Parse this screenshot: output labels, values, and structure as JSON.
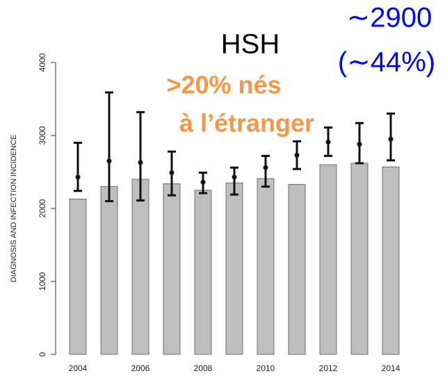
{
  "chart_data": {
    "type": "bar_errorbar",
    "ylabel": "DIAGNOSIS AND INFECTION INCIDENCE",
    "annotations": [
      "HSH",
      ">20% nés",
      "à l’étranger",
      "∼2900",
      "(∼44%)"
    ],
    "x": [
      2004,
      2005,
      2006,
      2007,
      2008,
      2009,
      2010,
      2011,
      2012,
      2013,
      2014
    ],
    "xlim": [
      2003.2,
      2014.8
    ],
    "xticks": [
      2004,
      2006,
      2008,
      2010,
      2012,
      2014
    ],
    "ylim": [
      0,
      4000
    ],
    "yticks": [
      0,
      1000,
      2000,
      3000,
      4000
    ],
    "bar_color": "#bebebe",
    "point_color": "#111111",
    "bars": [
      2130,
      2300,
      2400,
      2340,
      2250,
      2350,
      2410,
      2330,
      2600,
      2620,
      2570
    ],
    "points": [
      2430,
      2650,
      2630,
      2490,
      2360,
      2430,
      2560,
      2730,
      2910,
      2880,
      2950
    ],
    "lower": [
      2240,
      2100,
      2110,
      2180,
      2210,
      2190,
      2300,
      2540,
      2720,
      2620,
      2660
    ],
    "upper": [
      2900,
      3590,
      3320,
      2780,
      2490,
      2560,
      2720,
      2920,
      3110,
      3170,
      3300
    ]
  }
}
